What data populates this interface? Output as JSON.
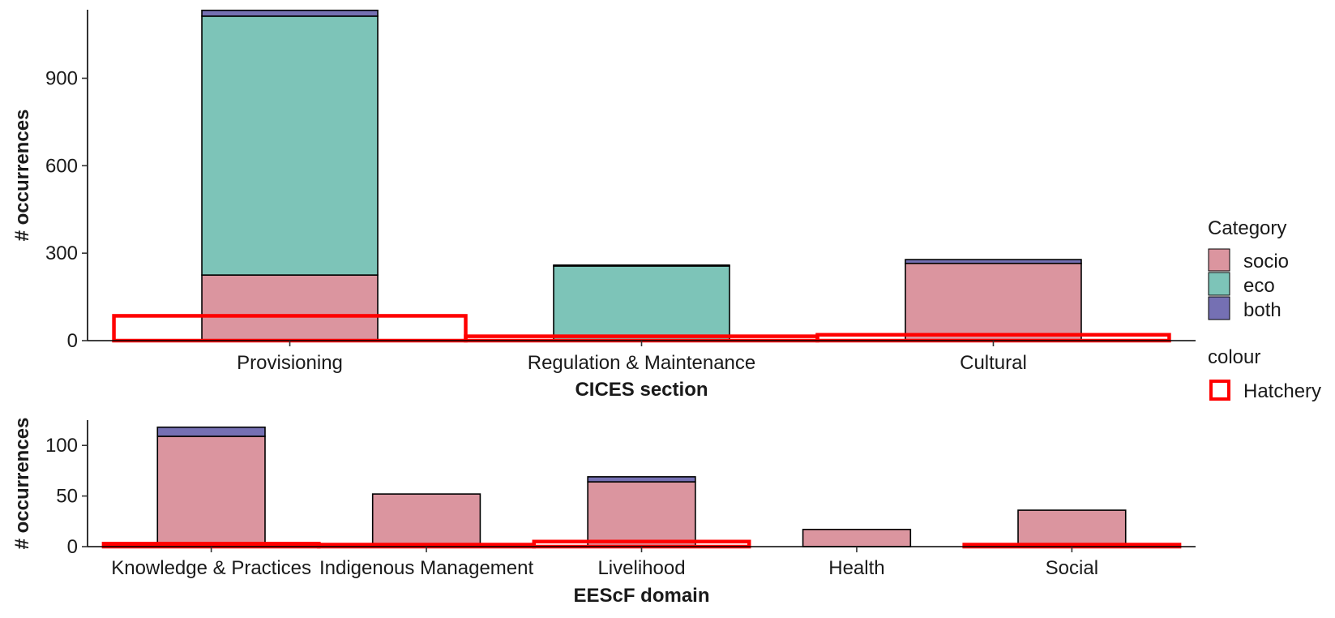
{
  "colors": {
    "socio": "#DB959F",
    "eco": "#7DC4B8",
    "both": "#7570B3",
    "hatchery": "#FF0000",
    "outline": "#000000"
  },
  "legend": {
    "category_title": "Category",
    "category_items": [
      {
        "key": "socio",
        "label": "socio"
      },
      {
        "key": "eco",
        "label": "eco"
      },
      {
        "key": "both",
        "label": "both"
      }
    ],
    "colour_title": "colour",
    "colour_items": [
      {
        "key": "hatchery",
        "label": "Hatchery"
      }
    ]
  },
  "chart_data": [
    {
      "type": "bar",
      "stacked": true,
      "xlabel": "CICES section",
      "ylabel": "# occurrences",
      "ylim": [
        0,
        1135
      ],
      "yticks": [
        0,
        300,
        600,
        900
      ],
      "categories": [
        "Provisioning",
        "Regulation & Maintenance",
        "Cultural"
      ],
      "series": [
        {
          "name": "socio",
          "values": [
            225,
            0,
            265
          ]
        },
        {
          "name": "eco",
          "values": [
            888,
            256,
            0
          ]
        },
        {
          "name": "both",
          "values": [
            20,
            3,
            13
          ]
        }
      ],
      "overlay": {
        "name": "Hatchery",
        "type": "outline_bar",
        "values": [
          85,
          15,
          20
        ]
      }
    },
    {
      "type": "bar",
      "stacked": true,
      "xlabel": "EEScF domain",
      "ylabel": "# occurrences",
      "ylim": [
        0,
        125
      ],
      "yticks": [
        0,
        50,
        100
      ],
      "categories": [
        "Knowledge & Practices",
        "Indigenous Management",
        "Livelihood",
        "Health",
        "Social"
      ],
      "series": [
        {
          "name": "socio",
          "values": [
            109,
            52,
            64,
            17,
            36
          ]
        },
        {
          "name": "both",
          "values": [
            9,
            0,
            5,
            0,
            0
          ]
        }
      ],
      "overlay": {
        "name": "Hatchery",
        "type": "outline_bar",
        "values": [
          3,
          2,
          5,
          0,
          2
        ]
      }
    }
  ]
}
